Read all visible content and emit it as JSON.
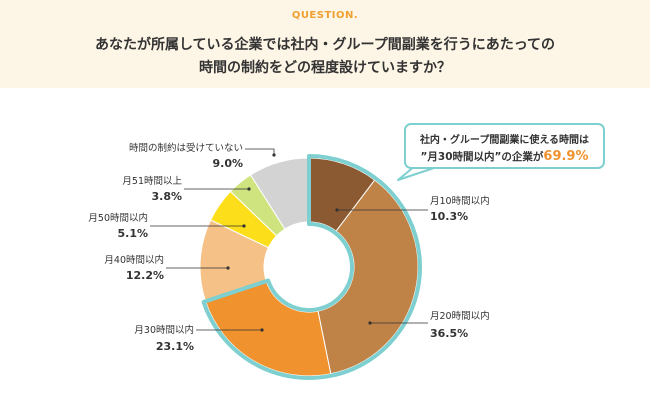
{
  "header": {
    "question_label": "QUESTION.",
    "title_line_1": "あなたが所属している企業では社内・グループ間副業を行うにあたっての",
    "title_line_2": "時間の制約をどの程度設けていますか？"
  },
  "callout": {
    "line_1": "社内・グループ間副業に使える時間は",
    "line_2_prefix": "”月30時間以内”の企業が",
    "line_2_value": "69.9%"
  },
  "colors": {
    "header_bg": "#fdf5e6",
    "accent_orange": "#f0a030",
    "highlight_border": "#7ecfcf",
    "leader_line": "#333333"
  },
  "chart_data": {
    "type": "pie",
    "variant": "donut",
    "categories": [
      "月10時間以内",
      "月20時間以内",
      "月30時間以内",
      "月40時間以内",
      "月50時間以内",
      "月51時間以上",
      "時間の制約は受けていない"
    ],
    "values": [
      10.3,
      36.5,
      23.1,
      12.2,
      5.1,
      3.8,
      9.0
    ],
    "value_labels": [
      "10.3%",
      "36.5%",
      "23.1%",
      "12.2%",
      "5.1%",
      "3.8%",
      "9.0%"
    ],
    "colors": [
      "#8b5a32",
      "#c08347",
      "#f0922e",
      "#f5c187",
      "#fcde1a",
      "#cfe37f",
      "#d3d3d3"
    ],
    "highlighted_categories": [
      "月10時間以内",
      "月20時間以内",
      "月30時間以内"
    ],
    "start_angle": "12 o'clock",
    "direction": "clockwise"
  }
}
